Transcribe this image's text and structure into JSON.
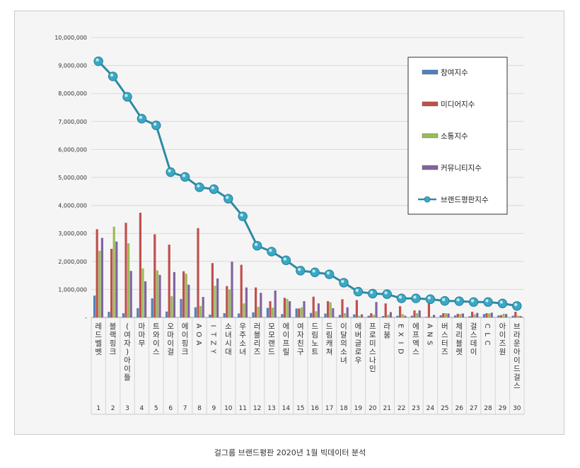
{
  "caption": "걸그룹 브랜드평판 2020년 1월 빅데이터 분석",
  "colors": {
    "participation": "#4f81bd",
    "media": "#c0504d",
    "communication": "#9bbb59",
    "community": "#8064a2",
    "brand": "#3aa8c4"
  },
  "chart_data": {
    "type": "bar",
    "title": "",
    "xlabel": "",
    "ylabel": "",
    "ylim": [
      0,
      10000000
    ],
    "y_ticks": [
      "-",
      "1,000,000",
      "2,000,000",
      "3,000,000",
      "4,000,000",
      "5,000,000",
      "6,000,000",
      "7,000,000",
      "8,000,000",
      "9,000,000",
      "10,000,000"
    ],
    "legend_position": "top-right",
    "categories": [
      "레드벨벳",
      "블랙핑크",
      "(여자)아이들",
      "마마무",
      "트와이스",
      "오마이걸",
      "에이핑크",
      "AOA",
      "ITZY",
      "소녀시대",
      "우주소녀",
      "러블리즈",
      "모모랜드",
      "에이프릴",
      "여자친구",
      "드림노트",
      "드림캐쳐",
      "이달의소녀",
      "에버글로우",
      "프로미스나인",
      "라붐",
      "EXID",
      "에프엑스",
      "ANS",
      "버스터즈",
      "체리블렛",
      "걸스데이",
      "CLC",
      "아이즈원",
      "브라운아이드걸스"
    ],
    "ranks": [
      "1",
      "2",
      "3",
      "4",
      "5",
      "6",
      "7",
      "8",
      "9",
      "10",
      "11",
      "12",
      "13",
      "14",
      "15",
      "16",
      "17",
      "18",
      "19",
      "20",
      "21",
      "22",
      "23",
      "24",
      "25",
      "26",
      "27",
      "28",
      "29",
      "30"
    ],
    "series": [
      {
        "name": "참여지수",
        "type": "bar",
        "values": [
          780000,
          200000,
          150000,
          330000,
          680000,
          210000,
          660000,
          360000,
          100000,
          150000,
          140000,
          180000,
          340000,
          120000,
          320000,
          160000,
          140000,
          90000,
          110000,
          60000,
          50000,
          60000,
          60000,
          20000,
          80000,
          70000,
          40000,
          120000,
          70000,
          60000
        ]
      },
      {
        "name": "미디어지수",
        "type": "bar",
        "values": [
          3150000,
          2450000,
          3380000,
          3740000,
          2970000,
          2600000,
          1650000,
          3190000,
          1940000,
          1120000,
          1880000,
          1070000,
          580000,
          700000,
          320000,
          740000,
          580000,
          650000,
          620000,
          150000,
          500000,
          400000,
          250000,
          500000,
          150000,
          130000,
          200000,
          150000,
          80000,
          200000
        ]
      },
      {
        "name": "소통지수",
        "type": "bar",
        "values": [
          2380000,
          3240000,
          2650000,
          1750000,
          1680000,
          760000,
          1560000,
          410000,
          1130000,
          1000000,
          500000,
          380000,
          350000,
          660000,
          360000,
          220000,
          540000,
          150000,
          60000,
          90000,
          90000,
          120000,
          150000,
          30000,
          150000,
          120000,
          110000,
          140000,
          130000,
          60000
        ]
      },
      {
        "name": "커뮤니티지수",
        "type": "bar",
        "values": [
          2840000,
          2710000,
          1660000,
          1290000,
          1520000,
          1620000,
          1170000,
          730000,
          1390000,
          1990000,
          1070000,
          880000,
          960000,
          580000,
          580000,
          500000,
          330000,
          360000,
          110000,
          550000,
          190000,
          60000,
          250000,
          90000,
          140000,
          140000,
          160000,
          170000,
          120000,
          50000
        ]
      },
      {
        "name": "브랜드평판지수",
        "type": "line",
        "values": [
          9150000,
          8610000,
          7880000,
          7100000,
          6860000,
          5190000,
          5020000,
          4650000,
          4580000,
          4240000,
          3610000,
          2560000,
          2350000,
          2040000,
          1670000,
          1610000,
          1540000,
          1240000,
          920000,
          850000,
          830000,
          680000,
          680000,
          650000,
          590000,
          580000,
          550000,
          550000,
          500000,
          410000
        ]
      }
    ]
  }
}
